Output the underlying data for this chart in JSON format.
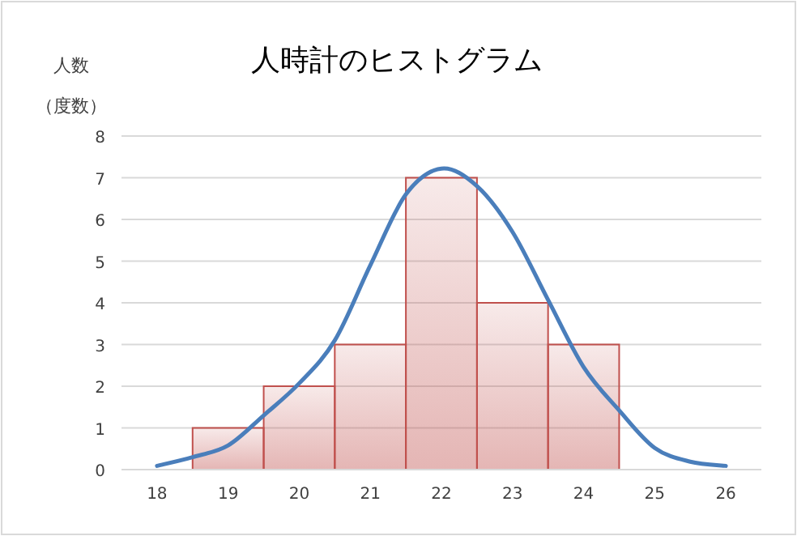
{
  "chart_data": {
    "type": "histogram",
    "title": "人時計のヒストグラム",
    "ylabel": "人数",
    "annotations": [
      "（度数）"
    ],
    "bins": [
      18.5,
      19.5,
      20.5,
      21.5,
      22.5,
      23.5,
      24.5
    ],
    "values": [
      1,
      2,
      3,
      7,
      4,
      3
    ],
    "color": "#c0504d",
    "series": [
      {
        "type": "line",
        "color": "#4a7ebb",
        "x": [
          18,
          18.5,
          19,
          19.5,
          20,
          20.5,
          21,
          21.5,
          22,
          22.5,
          23,
          23.5,
          24,
          24.5,
          25,
          25.5,
          26
        ],
        "values": [
          0.09,
          0.3,
          0.58,
          1.3,
          2.07,
          3.1,
          4.9,
          6.6,
          7.22,
          6.8,
          5.7,
          4.07,
          2.46,
          1.42,
          0.52,
          0.19,
          0.09
        ]
      }
    ],
    "xlim": [
      17.5,
      26.5
    ],
    "xticks": [
      18,
      19,
      20,
      21,
      22,
      23,
      24,
      25,
      26
    ],
    "ylim": [
      0,
      8
    ],
    "yticks": [
      0,
      1,
      2,
      3,
      4,
      5,
      6,
      7,
      8
    ],
    "grid": "y"
  }
}
